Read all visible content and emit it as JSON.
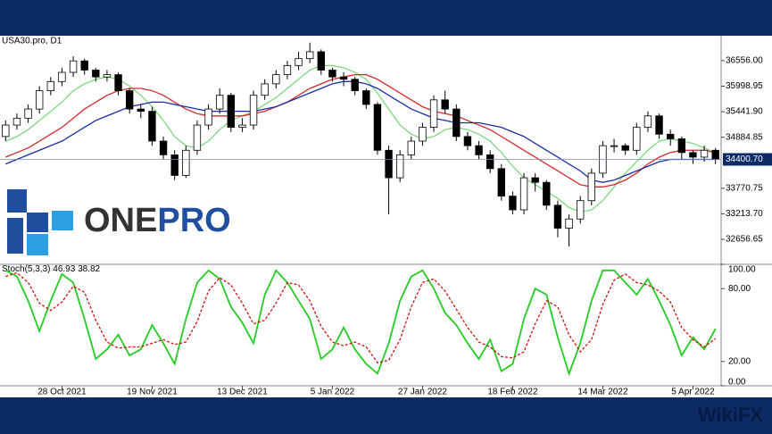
{
  "chart_data": [
    {
      "type": "candlestick",
      "title": "USA30.pro, D1",
      "open": [
        34900,
        35150,
        35300,
        35500,
        35900,
        36100,
        36300,
        36550,
        36350,
        36200,
        36250,
        35900,
        35500,
        35450,
        34800,
        34500,
        34050,
        34600,
        35150,
        35500,
        35800,
        35100,
        35150,
        35800,
        36050,
        36250,
        36450,
        36600,
        36750,
        36350,
        36200,
        36150,
        35900,
        35600,
        34600,
        34000,
        34500,
        34800,
        35100,
        35700,
        35500,
        34900,
        34700,
        34500,
        34200,
        33600,
        33300,
        34000,
        33900,
        33400,
        32900,
        33100,
        33500,
        34100,
        34700,
        34700,
        34600,
        35100,
        35350,
        34950,
        34850,
        34550,
        34450,
        34600
      ],
      "high": [
        35250,
        35400,
        35600,
        36000,
        36200,
        36400,
        36650,
        36600,
        36400,
        36350,
        36300,
        35950,
        35600,
        35550,
        34900,
        34600,
        34700,
        35250,
        35600,
        35950,
        35850,
        35300,
        35900,
        36150,
        36350,
        36550,
        36750,
        36950,
        36800,
        36400,
        36300,
        36200,
        35950,
        35650,
        34700,
        34600,
        34900,
        35200,
        35800,
        35900,
        35600,
        35000,
        34800,
        34600,
        34300,
        33700,
        34100,
        34100,
        33950,
        33500,
        33200,
        33600,
        34200,
        34800,
        34850,
        34750,
        35200,
        35450,
        35400,
        35050,
        34900,
        34600,
        34700,
        34650
      ],
      "low": [
        34800,
        35050,
        35200,
        35400,
        35800,
        36000,
        36200,
        36250,
        36100,
        36100,
        35800,
        35400,
        35300,
        34700,
        34400,
        33950,
        34000,
        34500,
        35050,
        35400,
        35000,
        35000,
        35050,
        35700,
        35950,
        36150,
        36350,
        36500,
        36250,
        36100,
        36000,
        35800,
        35500,
        34500,
        33200,
        33900,
        34400,
        34700,
        35000,
        35400,
        34800,
        34600,
        34400,
        34100,
        33500,
        33200,
        33200,
        33700,
        33300,
        32700,
        32500,
        33000,
        33400,
        34000,
        34550,
        34500,
        34500,
        35000,
        34850,
        34700,
        34400,
        34300,
        34350,
        34300
      ],
      "close": [
        35150,
        35300,
        35500,
        35900,
        36100,
        36300,
        36550,
        36350,
        36200,
        36250,
        35900,
        35500,
        35450,
        34800,
        34500,
        34050,
        34600,
        35150,
        35500,
        35800,
        35100,
        35150,
        35800,
        36050,
        36250,
        36450,
        36600,
        36750,
        36350,
        36200,
        36150,
        35900,
        35600,
        34600,
        34000,
        34500,
        34800,
        35100,
        35700,
        35500,
        34900,
        34700,
        34500,
        34200,
        33600,
        33300,
        34000,
        33900,
        33400,
        32900,
        33100,
        33500,
        34100,
        34700,
        34700,
        34600,
        35100,
        35350,
        34950,
        34850,
        34550,
        34450,
        34600,
        34400
      ],
      "up_color": "#ffffff",
      "down_color": "#000000",
      "lines": [
        {
          "color": "#7ed87e",
          "values": [
            34800,
            34900,
            35050,
            35250,
            35450,
            35650,
            35900,
            36050,
            36150,
            36200,
            36150,
            36000,
            35800,
            35550,
            35250,
            34900,
            34700,
            34650,
            34800,
            35050,
            35250,
            35350,
            35450,
            35600,
            35750,
            35950,
            36150,
            36350,
            36450,
            36450,
            36400,
            36300,
            36150,
            35850,
            35500,
            35150,
            34950,
            34850,
            34900,
            35050,
            35100,
            35050,
            34950,
            34800,
            34550,
            34250,
            34000,
            33850,
            33700,
            33550,
            33350,
            33250,
            33300,
            33500,
            33800,
            34100,
            34350,
            34600,
            34800,
            34850,
            34800,
            34750,
            34650,
            34550
          ]
        },
        {
          "color": "#d42a2a",
          "values": [
            34450,
            34550,
            34650,
            34800,
            34950,
            35100,
            35300,
            35500,
            35650,
            35800,
            35900,
            35950,
            35950,
            35900,
            35800,
            35650,
            35500,
            35400,
            35350,
            35350,
            35350,
            35350,
            35400,
            35450,
            35550,
            35650,
            35800,
            35950,
            36050,
            36150,
            36200,
            36250,
            36250,
            36150,
            36000,
            35850,
            35700,
            35550,
            35450,
            35400,
            35350,
            35250,
            35150,
            35050,
            34900,
            34750,
            34600,
            34450,
            34300,
            34150,
            34000,
            33850,
            33800,
            33800,
            33850,
            33950,
            34100,
            34300,
            34450,
            34550,
            34600,
            34600,
            34600,
            34550
          ]
        },
        {
          "color": "#1a2ea8",
          "values": [
            34300,
            34400,
            34500,
            34600,
            34700,
            34800,
            34950,
            35100,
            35250,
            35350,
            35450,
            35550,
            35600,
            35650,
            35650,
            35600,
            35550,
            35500,
            35450,
            35450,
            35450,
            35450,
            35450,
            35500,
            35550,
            35650,
            35750,
            35850,
            35950,
            36050,
            36100,
            36100,
            36050,
            35950,
            35800,
            35650,
            35500,
            35400,
            35300,
            35250,
            35200,
            35200,
            35200,
            35150,
            35100,
            35000,
            34900,
            34750,
            34600,
            34450,
            34300,
            34150,
            33950,
            33900,
            33950,
            34050,
            34150,
            34250,
            34350,
            34400,
            34400,
            34400,
            34400,
            34400
          ]
        }
      ],
      "current_price": {
        "value": 34400.7,
        "label": "34400.70"
      },
      "ylim": [
        32130,
        37100
      ],
      "yticks": [
        {
          "value": 32656.65,
          "label": "32656.65"
        },
        {
          "value": 33213.7,
          "label": "33213.70"
        },
        {
          "value": 33770.75,
          "label": "33770.75"
        },
        {
          "value": 34884.85,
          "label": "34884.85"
        },
        {
          "value": 35441.9,
          "label": "35441.90"
        },
        {
          "value": 35998.95,
          "label": "35998.95"
        },
        {
          "value": 36556,
          "label": "36556.00"
        }
      ]
    },
    {
      "type": "line",
      "title": "Stoch(5,3,3)",
      "categories": [
        null,
        null,
        null,
        null,
        null,
        "28 Oct 2021",
        null,
        null,
        null,
        null,
        null,
        null,
        null,
        "19 Nov 2021",
        null,
        null,
        null,
        null,
        null,
        null,
        null,
        "13 Dec 2021",
        null,
        null,
        null,
        null,
        null,
        null,
        null,
        "5 Jan 2022",
        null,
        null,
        null,
        null,
        null,
        null,
        null,
        "27 Jan 2022",
        null,
        null,
        null,
        null,
        null,
        null,
        null,
        "18 Feb 2022",
        null,
        null,
        null,
        null,
        null,
        null,
        null,
        "14 Mar 2022",
        null,
        null,
        null,
        null,
        null,
        null,
        null,
        "5 Apr 2022",
        null,
        null
      ],
      "series": [
        {
          "color": "#22cc22",
          "dashed": false,
          "values": [
            95,
            90,
            70,
            45,
            70,
            92,
            85,
            55,
            22,
            30,
            42,
            25,
            30,
            50,
            35,
            18,
            55,
            85,
            95,
            88,
            65,
            52,
            35,
            75,
            95,
            85,
            70,
            55,
            22,
            30,
            48,
            30,
            18,
            10,
            35,
            70,
            90,
            95,
            80,
            60,
            50,
            35,
            22,
            38,
            12,
            18,
            55,
            80,
            75,
            40,
            10,
            35,
            70,
            95,
            95,
            85,
            75,
            88,
            70,
            50,
            25,
            40,
            30,
            46.93
          ]
        },
        {
          "color": "#cc1111",
          "dashed": true,
          "values": [
            90,
            93,
            85,
            68,
            62,
            69,
            82,
            77,
            54,
            36,
            31,
            32,
            32,
            35,
            38,
            34,
            36,
            53,
            78,
            89,
            83,
            68,
            51,
            54,
            68,
            85,
            83,
            70,
            49,
            36,
            33,
            36,
            32,
            19,
            21,
            38,
            65,
            85,
            88,
            78,
            63,
            48,
            36,
            32,
            24,
            23,
            28,
            51,
            70,
            65,
            42,
            28,
            38,
            67,
            87,
            92,
            85,
            83,
            78,
            69,
            48,
            38,
            32,
            38.82
          ]
        }
      ],
      "ylim": [
        0,
        100
      ],
      "yticks": [
        {
          "value": 0,
          "label": "0.00"
        },
        {
          "value": 20,
          "label": "20.00"
        },
        {
          "value": 80,
          "label": "80.00"
        },
        {
          "value": 100,
          "label": "100.00"
        }
      ]
    }
  ],
  "logo": {
    "part1": "ONE",
    "part2": "PRO"
  },
  "watermark": "WikiFX"
}
